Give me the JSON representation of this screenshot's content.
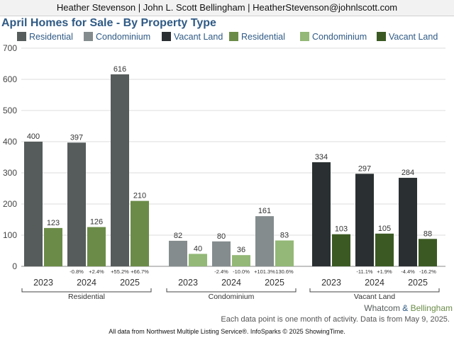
{
  "header": {
    "agent_line": "Heather Stevenson | John L. Scott Bellingham | HeatherStevenson@johnlscott.com"
  },
  "chart_data": {
    "type": "bar",
    "title": "April Homes for Sale - By Property Type",
    "ylim": [
      0,
      700
    ],
    "yticks": [
      0,
      100,
      200,
      300,
      400,
      500,
      600,
      700
    ],
    "grid": true,
    "legend_position": "top",
    "groups": [
      "Residential",
      "Condominium",
      "Vacant Land"
    ],
    "years": [
      "2023",
      "2024",
      "2025"
    ],
    "legend": [
      {
        "name": "Residential",
        "color": "#555c5b"
      },
      {
        "name": "Condominium",
        "color": "#848c8d"
      },
      {
        "name": "Vacant Land",
        "color": "#2a3032"
      },
      {
        "name": "Residential",
        "color": "#6b8c48"
      },
      {
        "name": "Condominium",
        "color": "#93b877"
      },
      {
        "name": "Vacant Land",
        "color": "#3b5a23"
      }
    ],
    "series": [
      {
        "region": "Whatcom",
        "group": "Residential",
        "color": "#555c5b",
        "values": [
          400,
          397,
          616
        ],
        "changes": [
          "",
          "-0.8%",
          "+55.2%"
        ]
      },
      {
        "region": "Bellingham",
        "group": "Residential",
        "color": "#6b8c48",
        "values": [
          123,
          126,
          210
        ],
        "changes": [
          "",
          "+2.4%",
          "+66.7%"
        ]
      },
      {
        "region": "Whatcom",
        "group": "Condominium",
        "color": "#848c8d",
        "values": [
          82,
          80,
          161
        ],
        "changes": [
          "",
          "-2.4%",
          "+101.3%"
        ]
      },
      {
        "region": "Bellingham",
        "group": "Condominium",
        "color": "#93b877",
        "values": [
          40,
          36,
          83
        ],
        "changes": [
          "",
          "-10.0%",
          "130.6%"
        ]
      },
      {
        "region": "Whatcom",
        "group": "Vacant Land",
        "color": "#2a3032",
        "values": [
          334,
          297,
          284
        ],
        "changes": [
          "",
          "-11.1%",
          "-4.4%"
        ]
      },
      {
        "region": "Bellingham",
        "group": "Vacant Land",
        "color": "#3b5a23",
        "values": [
          103,
          105,
          88
        ],
        "changes": [
          "",
          "+1.9%",
          "-16.2%"
        ]
      }
    ]
  },
  "region_label": {
    "whatcom": "Whatcom",
    "amp": "&",
    "bellingham": "Bellingham",
    "whatcom_color": "#555c5b",
    "bellingham_color": "#6b8c48"
  },
  "footer": {
    "note": "Each data point is one month of activity. Data is from May 9, 2025.",
    "source": "All data from Northwest Multiple Listing Service®. InfoSparks © 2025 ShowingTime."
  }
}
